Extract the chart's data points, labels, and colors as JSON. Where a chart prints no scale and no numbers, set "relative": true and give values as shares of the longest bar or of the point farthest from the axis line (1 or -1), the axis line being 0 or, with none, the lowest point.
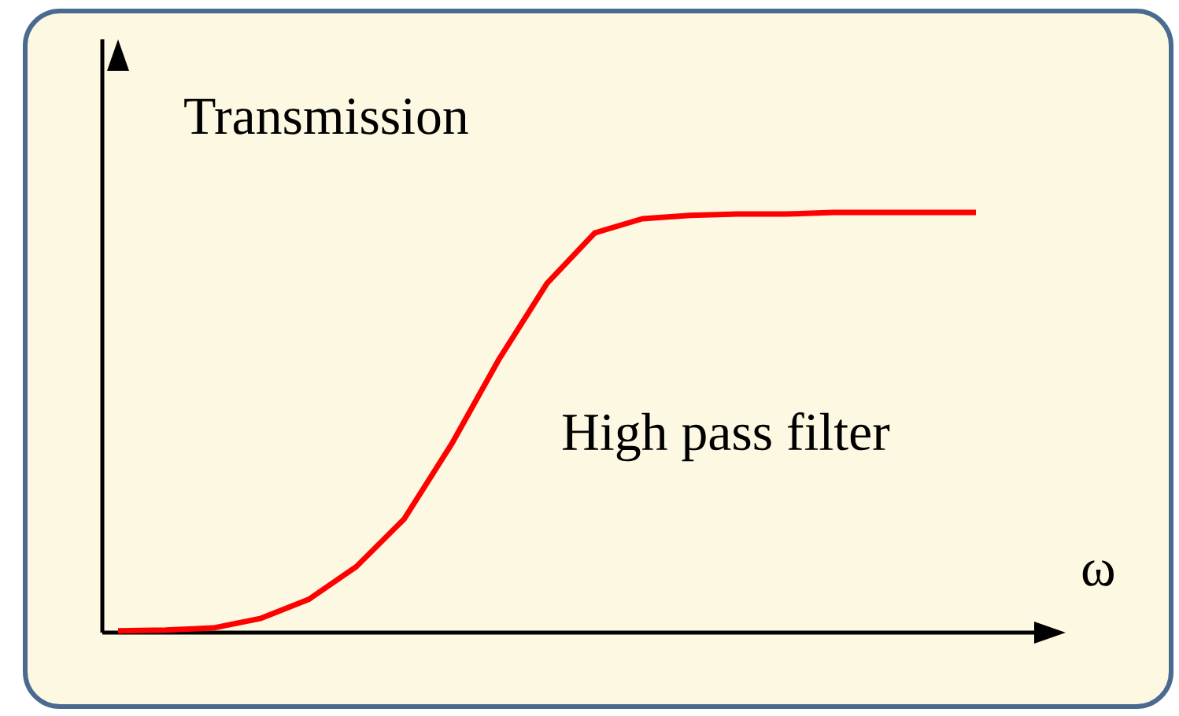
{
  "chart_data": {
    "type": "line",
    "relative": true,
    "ylabel": "Transmission",
    "xlabel": "ω",
    "annotations": [
      "High pass filter"
    ],
    "categories": [
      null,
      null,
      null,
      null,
      null,
      null,
      null,
      null,
      null,
      null,
      null,
      null,
      null,
      null,
      null,
      null,
      null,
      null,
      null
    ],
    "values": [
      0.004,
      0.006,
      0.011,
      0.034,
      0.079,
      0.157,
      0.27,
      0.449,
      0.652,
      0.831,
      0.951,
      0.985,
      0.993,
      0.996,
      0.996,
      1,
      1,
      1,
      1
    ],
    "color": "#ff0000"
  }
}
